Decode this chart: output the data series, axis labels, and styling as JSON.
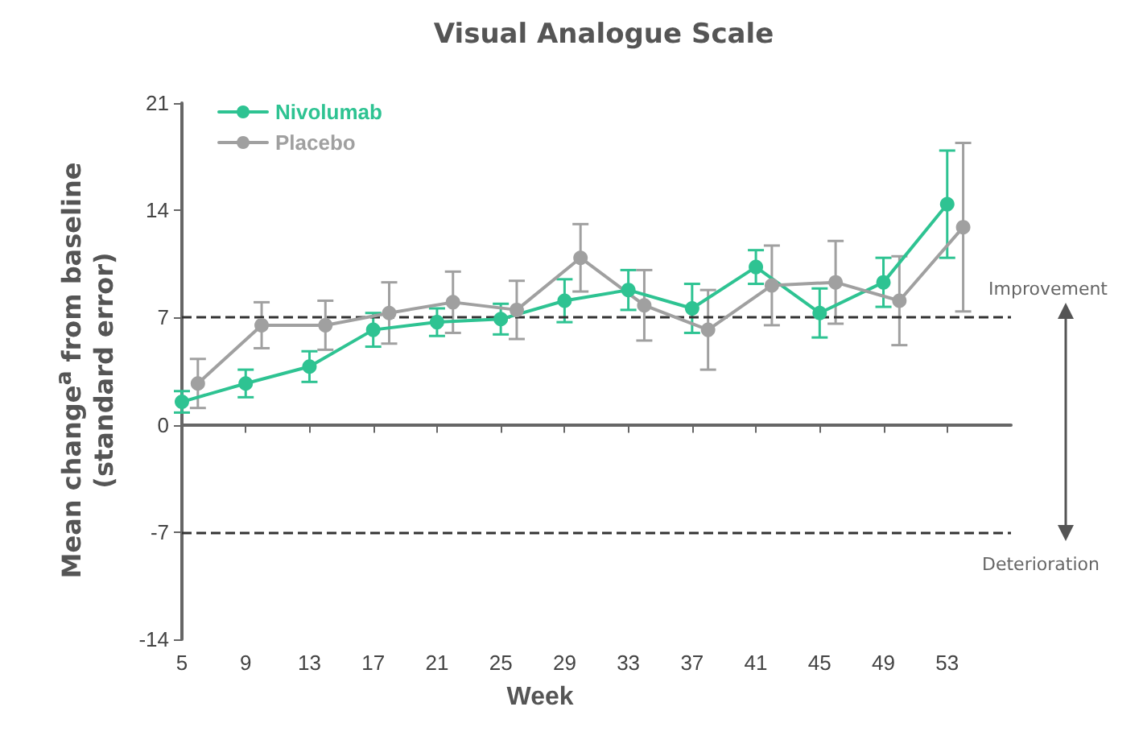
{
  "chart_data": {
    "type": "line",
    "title": "Visual Analogue Scale",
    "xlabel": "Week",
    "ylabel": "Mean change$^{a}$ from baseline (standard error)",
    "xlim": [
      5,
      57
    ],
    "xticks": [
      5,
      9,
      13,
      17,
      21,
      25,
      29,
      33,
      37,
      41,
      45,
      49,
      53
    ],
    "ylim": [
      -14,
      21
    ],
    "yticks": [
      -14,
      -7,
      0,
      7,
      14,
      21
    ],
    "grid": false,
    "legend": "top left",
    "marker": "circle",
    "line_style": "solid",
    "series": [
      {
        "name": "Nivolumab",
        "color": "#2ec392",
        "x": [
          5,
          9,
          13,
          17,
          21,
          25,
          29,
          33,
          37,
          41,
          45,
          49,
          53
        ],
        "values": [
          1.5,
          2.7,
          3.8,
          6.2,
          6.7,
          6.9,
          8.1,
          8.8,
          7.6,
          10.3,
          7.3,
          9.3,
          14.4
        ],
        "errors": [
          0.7,
          0.9,
          1.0,
          1.1,
          0.9,
          1.0,
          1.4,
          1.3,
          1.6,
          1.1,
          1.6,
          1.6,
          3.5
        ]
      },
      {
        "name": "Placebo",
        "color": "#a0a0a0",
        "x": [
          6,
          10,
          14,
          18,
          22,
          26,
          30,
          34,
          38,
          42,
          46,
          50,
          54
        ],
        "values": [
          2.7,
          6.5,
          6.5,
          7.3,
          8.0,
          7.5,
          10.9,
          7.8,
          6.2,
          9.1,
          9.3,
          8.1,
          12.9
        ],
        "errors": [
          1.6,
          1.5,
          1.6,
          2.0,
          2.0,
          1.9,
          2.2,
          2.3,
          2.6,
          2.6,
          2.7,
          2.9,
          5.5
        ]
      }
    ],
    "ref_lines": [
      {
        "axis": "y",
        "value": 7,
        "line_style": "dashed",
        "color": "#333333"
      },
      {
        "axis": "y",
        "value": 0,
        "line_style": "solid",
        "color": "#666666"
      },
      {
        "axis": "y",
        "value": -7,
        "line_style": "dashed",
        "color": "#333333"
      }
    ],
    "annotations": [
      "Improvement",
      "Deterioration"
    ]
  }
}
